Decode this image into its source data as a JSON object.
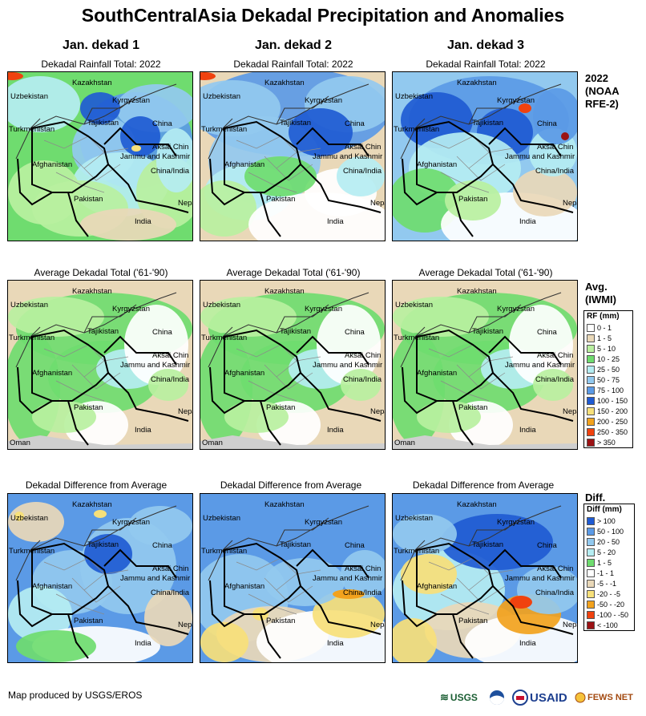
{
  "title": "SouthCentralAsia Dekadal Precipitation and Anomalies",
  "columns": [
    "Jan. dekad 1",
    "Jan. dekad 2",
    "Jan. dekad 3"
  ],
  "row_titles": {
    "rainfall": "Dekadal Rainfall Total: 2022",
    "average": "Average Dekadal Total ('61-'90)",
    "difference": "Dekadal Difference from Average"
  },
  "side_labels": {
    "rainfall": [
      "2022",
      "(NOAA",
      "RFE-2)"
    ],
    "average": [
      "Avg.",
      "(IWMI)"
    ],
    "difference": [
      "Diff."
    ]
  },
  "map_labels": {
    "kazakhstan": "Kazakhstan",
    "uzbekistan": "Uzbekistan",
    "kyrgyzstan": "Kyrgyzstan",
    "tajikistan": "Tajikistan",
    "turkmenistan": "Turkmenistan",
    "china": "China",
    "afghanistan": "Afghanistan",
    "aksai_chin": "Aksai Chin",
    "jammu_kashmir": "Jammu and Kashmir",
    "china_india": "China/India",
    "pakistan": "Pakistan",
    "nepal": "Nepal",
    "india": "India",
    "oman": "Oman"
  },
  "rf_legend": {
    "title": "RF (mm)",
    "items": [
      {
        "label": "0 - 1",
        "color": "#ffffff"
      },
      {
        "label": "1 - 5",
        "color": "#e9d8b8"
      },
      {
        "label": "5 - 10",
        "color": "#b9f0a0"
      },
      {
        "label": "10 - 25",
        "color": "#6fdc6f"
      },
      {
        "label": "25 - 50",
        "color": "#b5edf2"
      },
      {
        "label": "50 - 75",
        "color": "#92c9ef"
      },
      {
        "label": "75 - 100",
        "color": "#5b9ae6"
      },
      {
        "label": "100 - 150",
        "color": "#1f5bd3"
      },
      {
        "label": "150 - 200",
        "color": "#f7e07a"
      },
      {
        "label": "200 - 250",
        "color": "#f2a21d"
      },
      {
        "label": "250 - 350",
        "color": "#f0420f"
      },
      {
        "label": "> 350",
        "color": "#9b1214"
      }
    ]
  },
  "diff_legend": {
    "title": "Diff (mm)",
    "items": [
      {
        "label": "> 100",
        "color": "#1f5bd3"
      },
      {
        "label": "50 - 100",
        "color": "#5b9ae6"
      },
      {
        "label": "20 - 50",
        "color": "#92c9ef"
      },
      {
        "label": "5 - 20",
        "color": "#b5edf2"
      },
      {
        "label": "1 - 5",
        "color": "#6fdc6f"
      },
      {
        "label": "-1 - 1",
        "color": "#ffffff"
      },
      {
        "label": "-5 - -1",
        "color": "#e9d8b8"
      },
      {
        "label": "-20 - -5",
        "color": "#f7e07a"
      },
      {
        "label": "-50 - -20",
        "color": "#f2a21d"
      },
      {
        "label": "-100 - -50",
        "color": "#f0420f"
      },
      {
        "label": "< -100",
        "color": "#9b1214"
      }
    ]
  },
  "credit": "Map produced by USGS/EROS",
  "logos": [
    "USGS",
    "USAID",
    "FEWS NET"
  ]
}
